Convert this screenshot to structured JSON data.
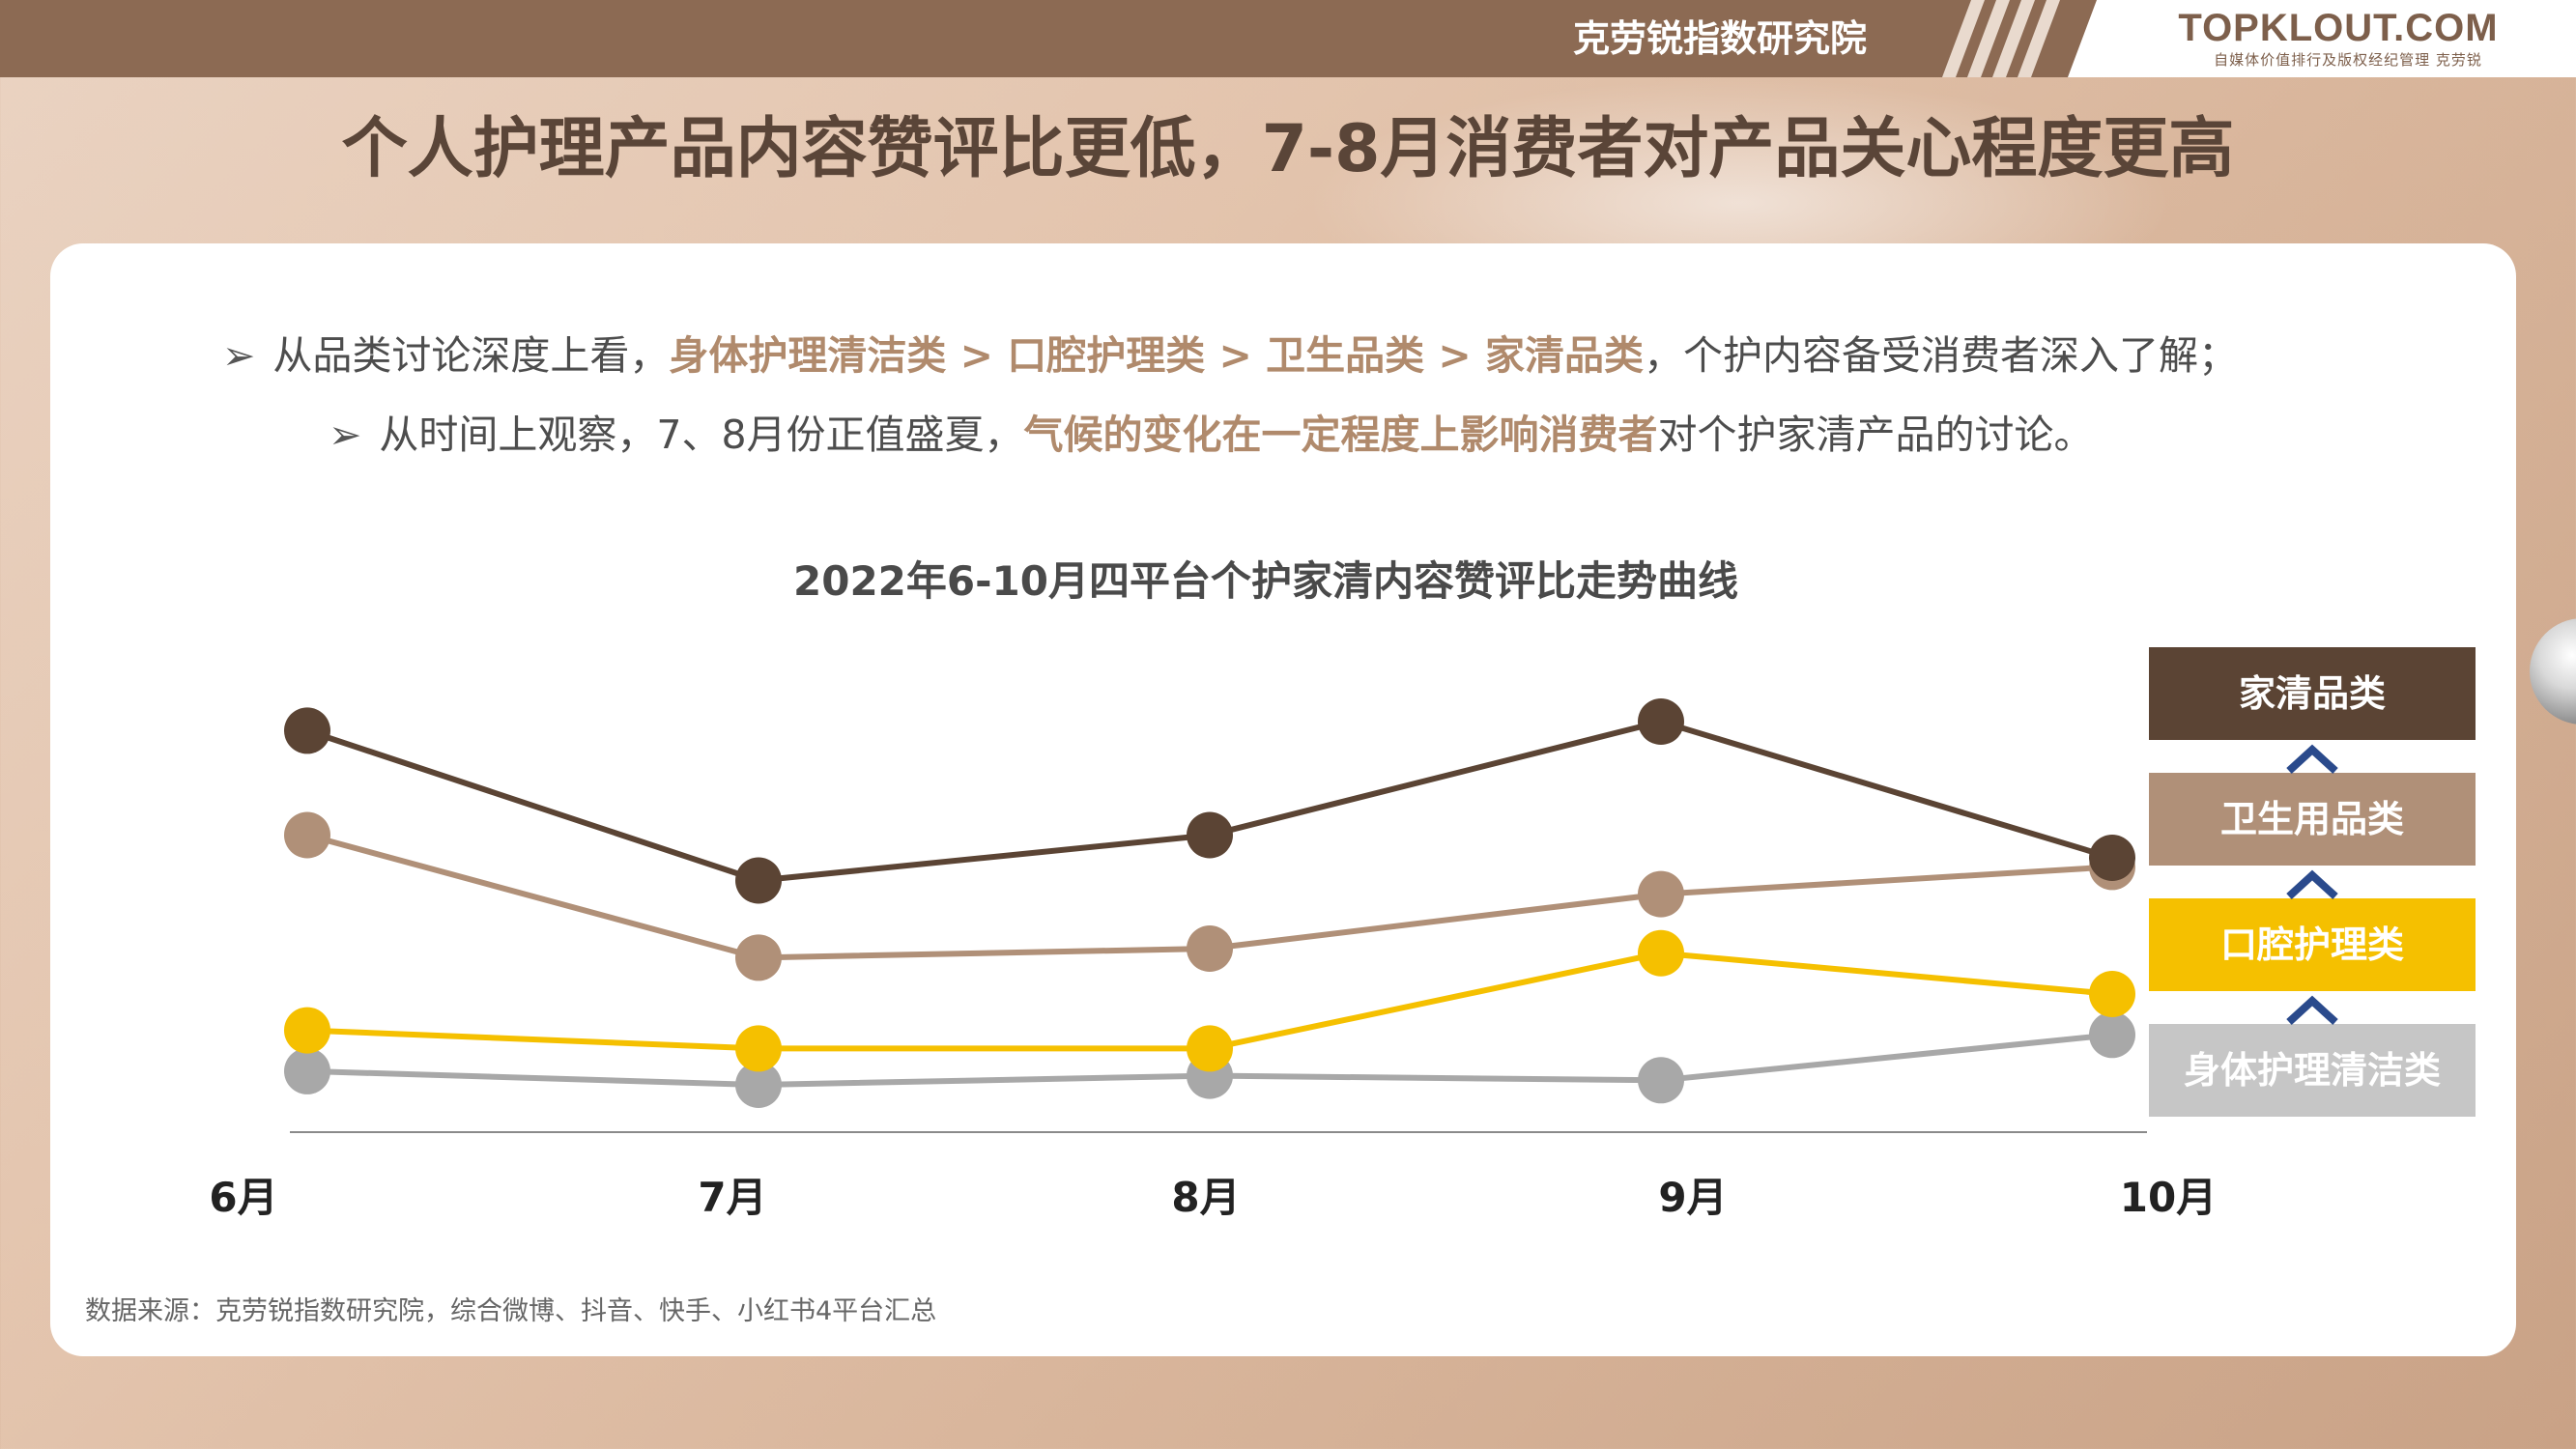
{
  "header": {
    "org_name": "克劳锐指数研究院",
    "logo_text": "TOPKLOUT.COM",
    "logo_subtext": "自媒体价值排行及版权经纪管理 克劳锐"
  },
  "headline": "个人护理产品内容赞评比更低，7-8月消费者对产品关心程度更高",
  "bullets": [
    {
      "prefix": "从品类讨论深度上看，",
      "highlight": "身体护理清洁类 > 口腔护理类 > 卫生品类 > 家清品类",
      "suffix": "，个护内容备受消费者深入了解；"
    },
    {
      "prefix": "从时间上观察，7、8月份正值盛夏，",
      "highlight": "气候的变化在一定程度上影响消费者",
      "suffix": "对个护家清产品的讨论。"
    }
  ],
  "chart_data": {
    "type": "line",
    "title": "2022年6-10月四平台个护家清内容赞评比走势曲线",
    "categories": [
      "6月",
      "7月",
      "8月",
      "9月",
      "10月"
    ],
    "ylim": [
      0,
      100
    ],
    "grid": false,
    "legend_position": "right",
    "series": [
      {
        "name": "家清品类",
        "color": "#5b4434",
        "values": [
          88,
          55,
          65,
          90,
          60
        ]
      },
      {
        "name": "卫生用品类",
        "color": "#b09078",
        "values": [
          65,
          38,
          40,
          52,
          58
        ]
      },
      {
        "name": "口腔护理类",
        "color": "#f5c000",
        "values": [
          22,
          18,
          18,
          39,
          30
        ]
      },
      {
        "name": "身体护理清洁类",
        "color": "#a8a8a8",
        "values": [
          13,
          10,
          12,
          11,
          21
        ]
      }
    ]
  },
  "legend_colors": {
    "家清品类": "#5b4434",
    "卫生用品类": "#b09078",
    "口腔护理类": "#f5c000",
    "身体护理清洁类": "#c6c6c6",
    "chevron": "#2a4a8c"
  },
  "source_note": "数据来源：克劳锐指数研究院，综合微博、抖音、快手、小红书4平台汇总"
}
